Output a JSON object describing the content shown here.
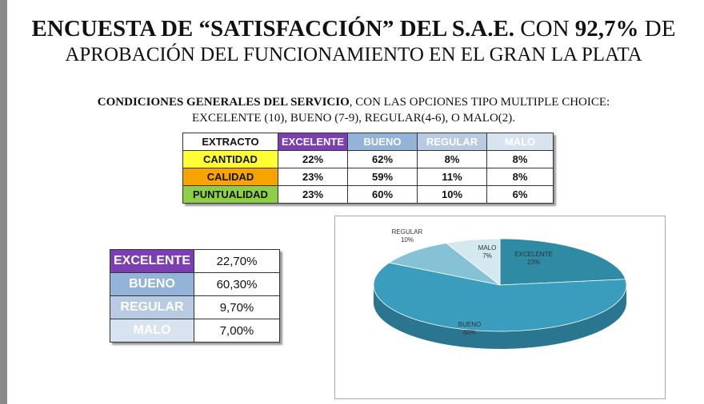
{
  "title": {
    "line1_bold": "ENCUESTA DE “SATISFACCIÓN” DEL S.A.E.",
    "line1_rest": " CON ",
    "line1_percent": "92,7%",
    "line1_end": " DE",
    "line2": "APROBACIÓN DEL FUNCIONAMIENTO EN EL GRAN LA PLATA"
  },
  "subtitle": {
    "bold": "CONDICIONES GENERALES DEL SERVICIO",
    "rest": ", CON LAS OPCIONES TIPO MULTIPLE CHOICE:",
    "line2": "EXCELENTE (10), BUENO (7-9), REGULAR(4-6), O MALO(2)."
  },
  "colors": {
    "excelente": "#7b3fb3",
    "bueno": "#93b3d9",
    "regular": "#b9cbe3",
    "malo": "#d8e3f0",
    "cantidad": "#ffff33",
    "calidad": "#f7a300",
    "puntualidad": "#8ecf45",
    "pie_bueno": "#3a9dbd",
    "pie_excelente": "#2f8aa3",
    "pie_regular": "#86c2d6",
    "pie_malo": "#d4e8ef"
  },
  "main_table": {
    "corner": "EXTRACTO",
    "headers": [
      "EXCELENTE",
      "BUENO",
      "REGULAR",
      "MALO"
    ],
    "rows": [
      {
        "label": "CANTIDAD",
        "values": [
          "22%",
          "62%",
          "8%",
          "8%"
        ]
      },
      {
        "label": "CALIDAD",
        "values": [
          "23%",
          "59%",
          "11%",
          "8%"
        ]
      },
      {
        "label": "PUNTUALIDAD",
        "values": [
          "23%",
          "60%",
          "10%",
          "6%"
        ]
      }
    ]
  },
  "summary_table": [
    {
      "label": "EXCELENTE",
      "value": "22,70%"
    },
    {
      "label": "BUENO",
      "value": "60,30%"
    },
    {
      "label": "REGULAR",
      "value": "9,70%"
    },
    {
      "label": "MALO",
      "value": "7,00%"
    }
  ],
  "chart_data": {
    "type": "pie",
    "style": "3d",
    "categories": [
      "EXCELENTE",
      "BUENO",
      "REGULAR",
      "MALO"
    ],
    "values": [
      23,
      60,
      10,
      7
    ],
    "labels": [
      "EXCELENTE\n23%",
      "BUENO\n60%",
      "REGULAR\n10%",
      "MALO\n7%"
    ],
    "title": ""
  }
}
